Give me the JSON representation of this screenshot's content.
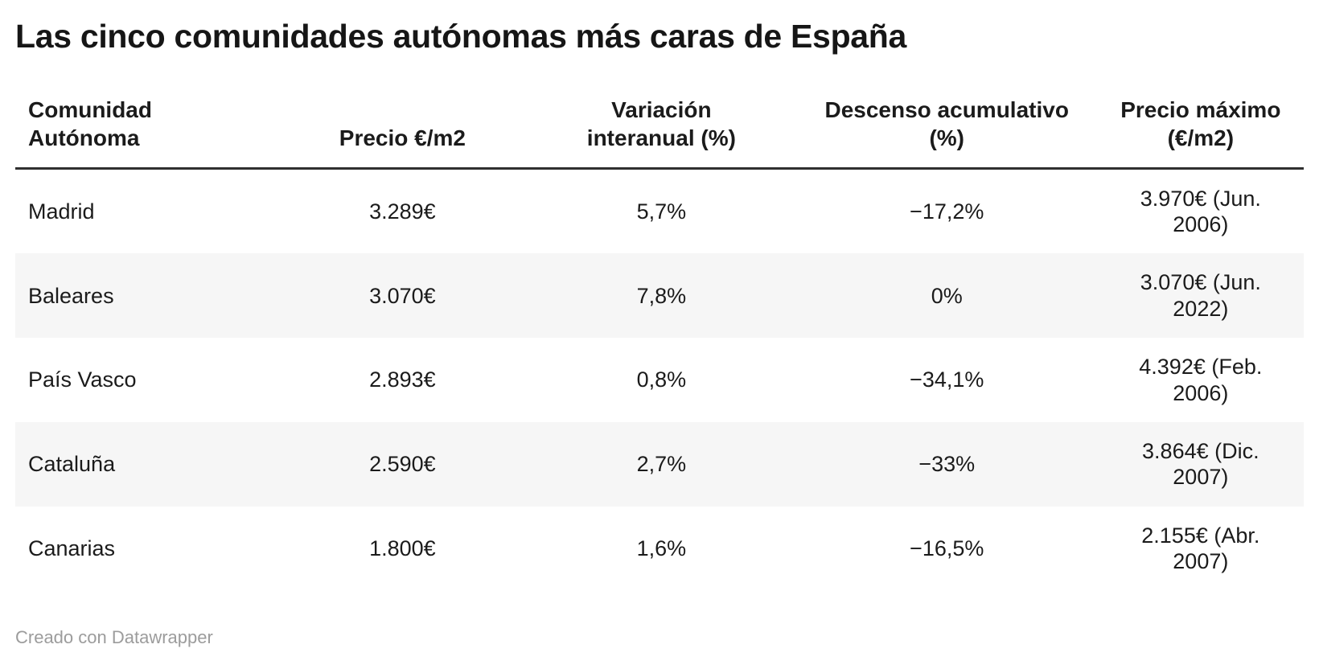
{
  "title": "Las cinco comunidades autónomas más caras de España",
  "table": {
    "columns": [
      {
        "id": "comunidad",
        "label": "Comunidad\nAutónoma",
        "align": "left"
      },
      {
        "id": "precio",
        "label": "Precio €/m2",
        "align": "center"
      },
      {
        "id": "variacion",
        "label": "Variación\ninteranual (%)",
        "align": "center"
      },
      {
        "id": "descenso",
        "label": "Descenso acumulativo\n(%)",
        "align": "center"
      },
      {
        "id": "precio-maximo",
        "label": "Precio máximo\n(€/m2)",
        "align": "center"
      }
    ],
    "rows": [
      [
        "Madrid",
        "3.289€",
        "5,7%",
        "−17,2%",
        "3.970€ (Jun.\n2006)"
      ],
      [
        "Baleares",
        "3.070€",
        "7,8%",
        "0%",
        "3.070€ (Jun.\n2022)"
      ],
      [
        "País Vasco",
        "2.893€",
        "0,8%",
        "−34,1%",
        "4.392€ (Feb.\n2006)"
      ],
      [
        "Cataluña",
        "2.590€",
        "2,7%",
        "−33%",
        "3.864€ (Dic.\n2007)"
      ],
      [
        "Canarias",
        "1.800€",
        "1,6%",
        "−16,5%",
        "2.155€ (Abr.\n2007)"
      ]
    ]
  },
  "footer": {
    "credit": "Creado con Datawrapper"
  },
  "colors": {
    "background": "#ffffff",
    "text": "#1b1b1b",
    "header_rule": "#303030",
    "row_stripe": "#f6f6f6",
    "footer_text": "#9c9c9c"
  },
  "chart_data": {
    "type": "table",
    "title": "Las cinco comunidades autónomas más caras de España",
    "columns": [
      "Comunidad Autónoma",
      "Precio €/m2",
      "Variación interanual (%)",
      "Descenso acumulativo (%)",
      "Precio máximo (€/m2)"
    ],
    "rows": [
      {
        "comunidad": "Madrid",
        "precio_eur_m2": 3289,
        "variacion_interanual_pct": 5.7,
        "descenso_acumulativo_pct": -17.2,
        "precio_maximo": "3.970€ (Jun. 2006)"
      },
      {
        "comunidad": "Baleares",
        "precio_eur_m2": 3070,
        "variacion_interanual_pct": 7.8,
        "descenso_acumulativo_pct": 0,
        "precio_maximo": "3.070€ (Jun. 2022)"
      },
      {
        "comunidad": "País Vasco",
        "precio_eur_m2": 2893,
        "variacion_interanual_pct": 0.8,
        "descenso_acumulativo_pct": -34.1,
        "precio_maximo": "4.392€ (Feb. 2006)"
      },
      {
        "comunidad": "Cataluña",
        "precio_eur_m2": 2590,
        "variacion_interanual_pct": 2.7,
        "descenso_acumulativo_pct": -33,
        "precio_maximo": "3.864€ (Dic. 2007)"
      },
      {
        "comunidad": "Canarias",
        "precio_eur_m2": 1800,
        "variacion_interanual_pct": 1.6,
        "descenso_acumulativo_pct": -16.5,
        "precio_maximo": "2.155€ (Abr. 2007)"
      }
    ],
    "layout": {
      "zebra_stripes": true,
      "header_rule": true,
      "first_column_align": "left",
      "other_columns_align": "center"
    },
    "credit": "Creado con Datawrapper"
  }
}
